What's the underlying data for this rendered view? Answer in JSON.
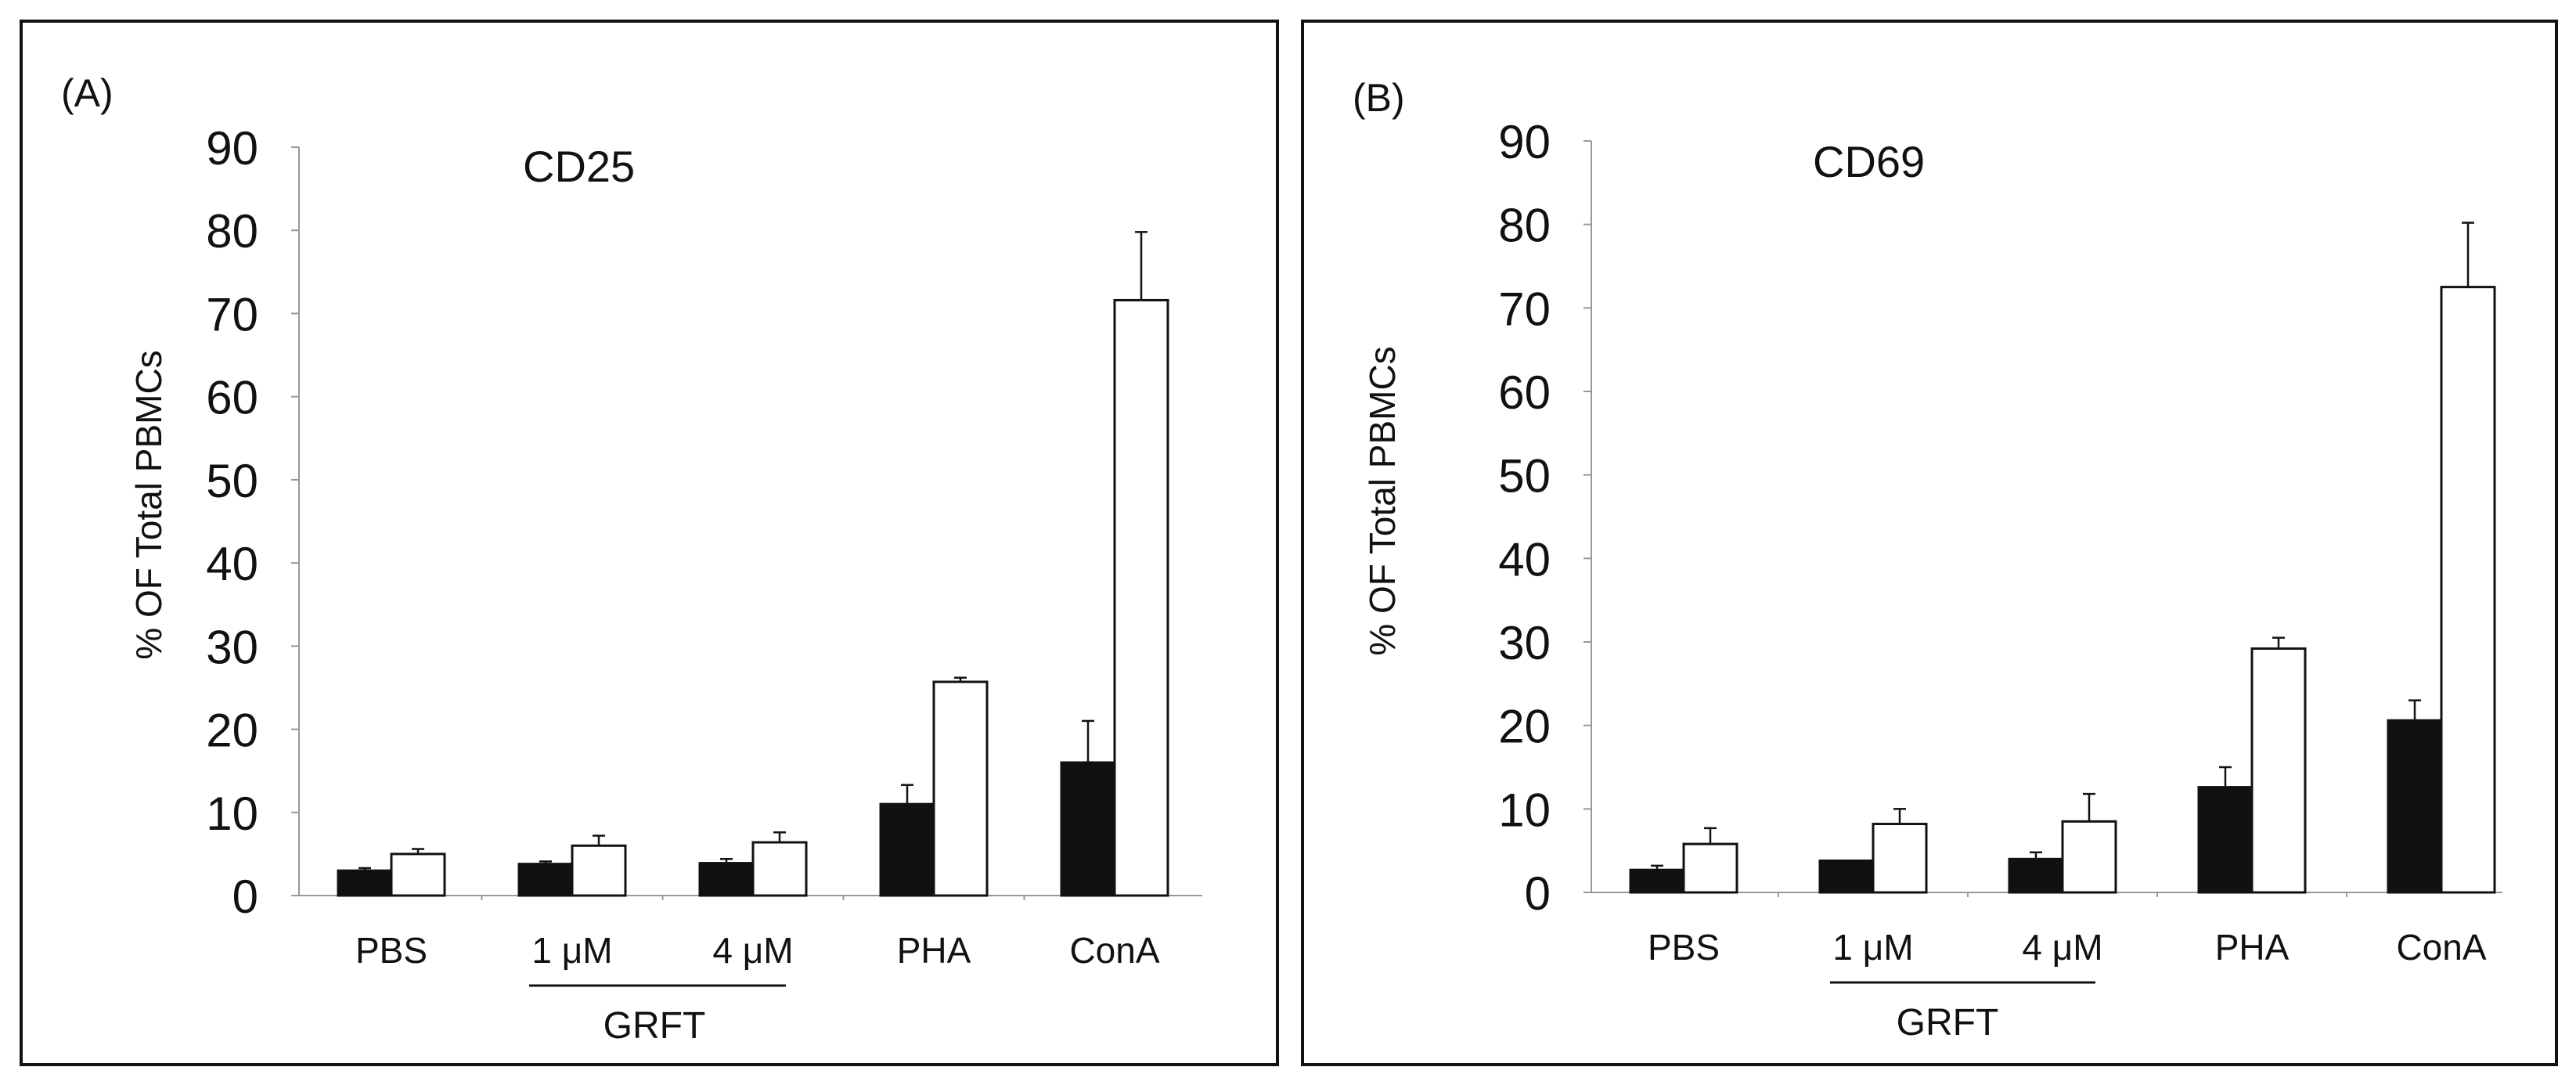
{
  "figure": {
    "panels": [
      {
        "panel_label": "(A)",
        "title": "CD25",
        "ylabel": "% OF Total  PBMCs",
        "group_label": "GRFT"
      },
      {
        "panel_label": "(B)",
        "title": "CD69",
        "ylabel": "% OF Total  PBMCs",
        "group_label": "GRFT"
      }
    ]
  },
  "chart_data": [
    {
      "type": "bar",
      "title": "CD25",
      "panel_label": "(A)",
      "xlabel": "",
      "ylabel": "% OF Total  PBMCs",
      "ylim": [
        0,
        90
      ],
      "yticks": [
        0,
        10,
        20,
        30,
        40,
        50,
        60,
        70,
        80,
        90
      ],
      "grid": false,
      "categories": [
        "PBS",
        "1 μM",
        "4 μM",
        "PHA",
        "ConA"
      ],
      "group_bracket": {
        "label": "GRFT",
        "categories": [
          "1 μM",
          "4 μM"
        ]
      },
      "series": [
        {
          "name": "filled",
          "color": "#111111",
          "values": [
            3.0,
            3.8,
            3.9,
            11.0,
            16.0
          ],
          "errors": [
            0.3,
            0.3,
            0.5,
            2.3,
            5.0
          ]
        },
        {
          "name": "open",
          "color": "#ffffff",
          "values": [
            5.0,
            6.0,
            6.4,
            25.7,
            71.6
          ],
          "errors": [
            0.6,
            1.2,
            1.2,
            0.5,
            8.2
          ]
        }
      ]
    },
    {
      "type": "bar",
      "title": "CD69",
      "panel_label": "(B)",
      "xlabel": "",
      "ylabel": "% OF Total  PBMCs",
      "ylim": [
        0,
        90
      ],
      "yticks": [
        0,
        10,
        20,
        30,
        40,
        50,
        60,
        70,
        80,
        90
      ],
      "grid": false,
      "categories": [
        "PBS",
        "1 μM",
        "4 μM",
        "PHA",
        "ConA"
      ],
      "group_bracket": {
        "label": "GRFT",
        "categories": [
          "1 μM",
          "4 μM"
        ]
      },
      "series": [
        {
          "name": "filled",
          "color": "#111111",
          "values": [
            2.7,
            3.8,
            4.0,
            12.6,
            20.6
          ],
          "errors": [
            0.5,
            0.0,
            0.8,
            2.4,
            2.4
          ]
        },
        {
          "name": "open",
          "color": "#ffffff",
          "values": [
            5.8,
            8.2,
            8.5,
            29.2,
            72.5
          ],
          "errors": [
            1.9,
            1.8,
            3.3,
            1.3,
            7.7
          ]
        }
      ]
    }
  ]
}
